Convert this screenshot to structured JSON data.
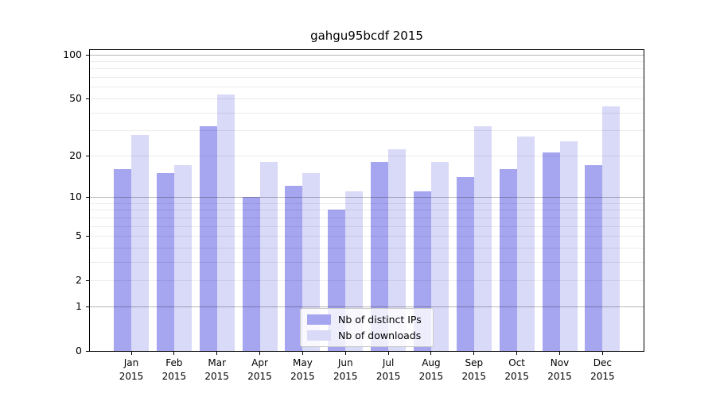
{
  "chart_data": {
    "type": "bar",
    "title": "gahgu95bcdf 2015",
    "categories": [
      "Jan",
      "Feb",
      "Mar",
      "Apr",
      "May",
      "Jun",
      "Jul",
      "Aug",
      "Sep",
      "Oct",
      "Nov",
      "Dec"
    ],
    "year": "2015",
    "series": [
      {
        "name": "Nb of distinct IPs",
        "color": "#a5a5f0",
        "values": [
          16,
          15,
          32,
          10,
          12,
          8,
          18,
          11,
          14,
          16,
          21,
          17
        ]
      },
      {
        "name": "Nb of downloads",
        "color": "#d9d9f8",
        "values": [
          28,
          17,
          53,
          18,
          15,
          11,
          22,
          18,
          32,
          27,
          25,
          44
        ]
      }
    ],
    "xlabel": "",
    "ylabel": "",
    "yscale": "log10(1+v)",
    "ylim": [
      0,
      108
    ],
    "yticks": [
      0,
      1,
      2,
      5,
      10,
      20,
      50,
      100
    ],
    "major_gridlines": [
      1,
      10,
      100
    ],
    "minor_gridlines": [
      2,
      3,
      4,
      5,
      6,
      7,
      8,
      9,
      20,
      30,
      40,
      50,
      60,
      70,
      80,
      90
    ],
    "grid": true,
    "gridlines_above_bars": true,
    "legend_position": "lower center"
  }
}
